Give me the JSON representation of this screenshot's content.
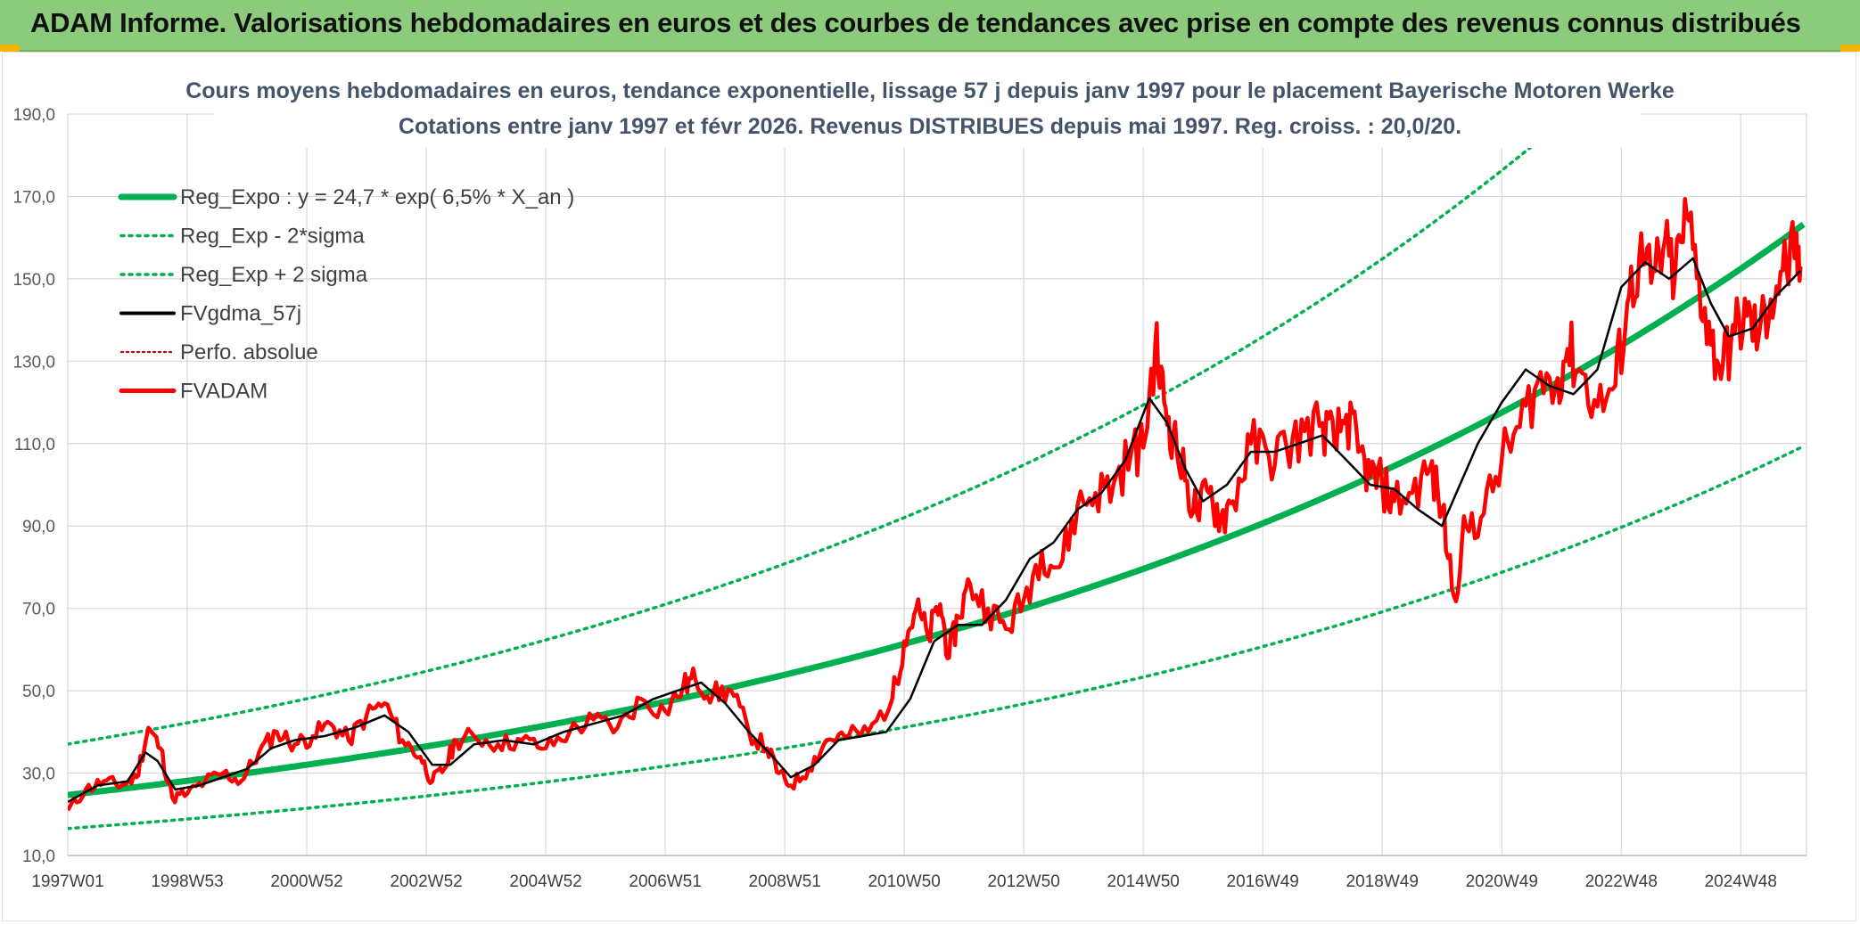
{
  "banner": {
    "title": "ADAM Informe. Valorisations hebdomadaires en euros et des courbes de tendances avec prise en compte des revenus connus distribués"
  },
  "colors": {
    "banner_bg": "#8ccb7c",
    "reg_expo": "#00b050",
    "fvgdma": "#000000",
    "fvadam": "#ff0000",
    "perfo": "#c00000",
    "corner_accent": "#f3b400"
  },
  "chart_data": {
    "type": "line",
    "title": "Cours moyens hebdomadaires en euros, tendance exponentielle, lissage 57 j depuis janv 1997 pour le placement Bayerische Motoren Werke",
    "subtitle": "Cotations entre janv 1997 et févr 2026. Revenus DISTRIBUES depuis mai 1997. Reg. croiss. : 20,0/20.",
    "xlabel": "",
    "ylabel": "",
    "ylim": [
      10,
      190
    ],
    "y_ticks": [
      "10,0",
      "30,0",
      "50,0",
      "70,0",
      "90,0",
      "110,0",
      "130,0",
      "150,0",
      "170,0",
      "190,0"
    ],
    "x_range": [
      1997.0,
      2026.1
    ],
    "x_ticks": [
      {
        "label": "1997W01",
        "year": 1997.0
      },
      {
        "label": "1998W53",
        "year": 1999.0
      },
      {
        "label": "2000W52",
        "year": 2001.0
      },
      {
        "label": "2002W52",
        "year": 2003.0
      },
      {
        "label": "2004W52",
        "year": 2005.0
      },
      {
        "label": "2006W51",
        "year": 2007.0
      },
      {
        "label": "2008W51",
        "year": 2009.0
      },
      {
        "label": "2010W50",
        "year": 2011.0
      },
      {
        "label": "2012W50",
        "year": 2013.0
      },
      {
        "label": "2014W50",
        "year": 2015.0
      },
      {
        "label": "2016W49",
        "year": 2017.0
      },
      {
        "label": "2018W49",
        "year": 2019.0
      },
      {
        "label": "2020W49",
        "year": 2021.0
      },
      {
        "label": "2022W48",
        "year": 2023.0
      },
      {
        "label": "2024W48",
        "year": 2025.0
      }
    ],
    "grid": true,
    "legend_position": "top-left",
    "legend": [
      {
        "key": "reg_expo",
        "label": "Reg_Expo : y = 24,7 * exp( 6,5% *  X_an )"
      },
      {
        "key": "reg_minus",
        "label": "Reg_Exp - 2*sigma"
      },
      {
        "key": "reg_plus",
        "label": "Reg_Exp + 2 sigma"
      },
      {
        "key": "fvgdma",
        "label": "FVgdma_57j"
      },
      {
        "key": "perfo",
        "label": "Perfo. absolue"
      },
      {
        "key": "fvadam",
        "label": "FVADAM"
      }
    ],
    "regression": {
      "a": 24.7,
      "rate": 0.065,
      "upper_factor": 1.5,
      "lower_factor": 0.67
    },
    "series": [
      {
        "name": "FVADAM",
        "x": [
          1997.0,
          1997.3,
          1997.6,
          1997.9,
          1998.15,
          1998.35,
          1998.55,
          1998.75,
          1999.0,
          1999.3,
          1999.6,
          1999.9,
          2000.2,
          2000.5,
          2000.8,
          2001.1,
          2001.4,
          2001.7,
          2002.0,
          2002.3,
          2002.6,
          2002.9,
          2003.1,
          2003.3,
          2003.5,
          2003.8,
          2004.2,
          2004.6,
          2005.0,
          2005.4,
          2005.8,
          2006.2,
          2006.6,
          2007.0,
          2007.3,
          2007.5,
          2007.8,
          2008.1,
          2008.4,
          2008.7,
          2008.9,
          2009.1,
          2009.4,
          2009.7,
          2010.0,
          2010.4,
          2010.8,
          2011.0,
          2011.2,
          2011.4,
          2011.6,
          2011.75,
          2011.9,
          2012.1,
          2012.4,
          2012.7,
          2013.0,
          2013.3,
          2013.6,
          2013.9,
          2014.2,
          2014.5,
          2014.8,
          2015.0,
          2015.2,
          2015.35,
          2015.5,
          2015.7,
          2015.9,
          2016.1,
          2016.3,
          2016.5,
          2016.8,
          2017.1,
          2017.4,
          2017.7,
          2018.0,
          2018.2,
          2018.4,
          2018.6,
          2018.8,
          2019.0,
          2019.2,
          2019.5,
          2019.8,
          2020.0,
          2020.2,
          2020.4,
          2020.7,
          2021.0,
          2021.3,
          2021.6,
          2021.9,
          2022.1,
          2022.3,
          2022.6,
          2022.9,
          2023.1,
          2023.3,
          2023.5,
          2023.7,
          2023.9,
          2024.1,
          2024.3,
          2024.5,
          2024.7,
          2024.9,
          2025.1,
          2025.3,
          2025.5,
          2025.7,
          2025.9,
          2026.0
        ],
        "y": [
          21,
          26,
          28,
          27,
          29,
          41,
          36,
          24,
          25,
          28,
          30,
          28,
          35,
          40,
          37,
          39,
          42,
          38,
          44,
          47,
          38,
          34,
          28,
          31,
          38,
          39,
          37,
          38,
          36,
          40,
          43,
          41,
          48,
          45,
          51,
          53,
          49,
          50,
          40,
          36,
          30,
          27,
          31,
          38,
          39,
          40,
          48,
          62,
          70,
          63,
          71,
          58,
          68,
          76,
          70,
          65,
          72,
          84,
          80,
          95,
          98,
          100,
          108,
          109,
          134,
          120,
          112,
          101,
          93,
          98,
          92,
          96,
          110,
          107,
          109,
          113,
          115,
          110,
          117,
          108,
          102,
          100,
          96,
          98,
          104,
          94,
          73,
          90,
          93,
          106,
          114,
          125,
          124,
          133,
          128,
          119,
          124,
          144,
          155,
          149,
          157,
          151,
          165,
          150,
          134,
          129,
          137,
          141,
          136,
          145,
          152,
          155,
          153
        ]
      },
      {
        "name": "FVgdma_57j",
        "x": [
          1997.0,
          1997.5,
          1998.0,
          1998.3,
          1998.5,
          1998.8,
          1999.2,
          1999.6,
          2000.0,
          2000.4,
          2000.8,
          2001.3,
          2001.8,
          2002.3,
          2002.7,
          2003.1,
          2003.4,
          2003.8,
          2004.3,
          2004.8,
          2005.3,
          2005.8,
          2006.3,
          2006.8,
          2007.2,
          2007.6,
          2008.0,
          2008.4,
          2008.8,
          2009.1,
          2009.5,
          2009.9,
          2010.3,
          2010.7,
          2011.1,
          2011.5,
          2011.9,
          2012.3,
          2012.7,
          2013.1,
          2013.5,
          2013.9,
          2014.3,
          2014.7,
          2015.1,
          2015.4,
          2015.7,
          2016.0,
          2016.4,
          2016.8,
          2017.2,
          2017.6,
          2018.0,
          2018.4,
          2018.8,
          2019.2,
          2019.6,
          2020.0,
          2020.3,
          2020.6,
          2021.0,
          2021.4,
          2021.8,
          2022.2,
          2022.6,
          2023.0,
          2023.4,
          2023.8,
          2024.2,
          2024.5,
          2024.8,
          2025.2,
          2025.6,
          2026.0
        ],
        "y": [
          23,
          27,
          28,
          35,
          33,
          26,
          27,
          29,
          31,
          36,
          38,
          39,
          41,
          44,
          40,
          32,
          32,
          37,
          38,
          37,
          40,
          42,
          44,
          48,
          50,
          52,
          47,
          40,
          34,
          29,
          32,
          38,
          39,
          40,
          48,
          62,
          66,
          66,
          72,
          82,
          86,
          94,
          98,
          106,
          121,
          115,
          104,
          96,
          100,
          108,
          108,
          110,
          112,
          106,
          100,
          99,
          94,
          90,
          100,
          110,
          120,
          128,
          124,
          122,
          128,
          148,
          154,
          150,
          155,
          144,
          136,
          138,
          146,
          152
        ]
      }
    ]
  }
}
